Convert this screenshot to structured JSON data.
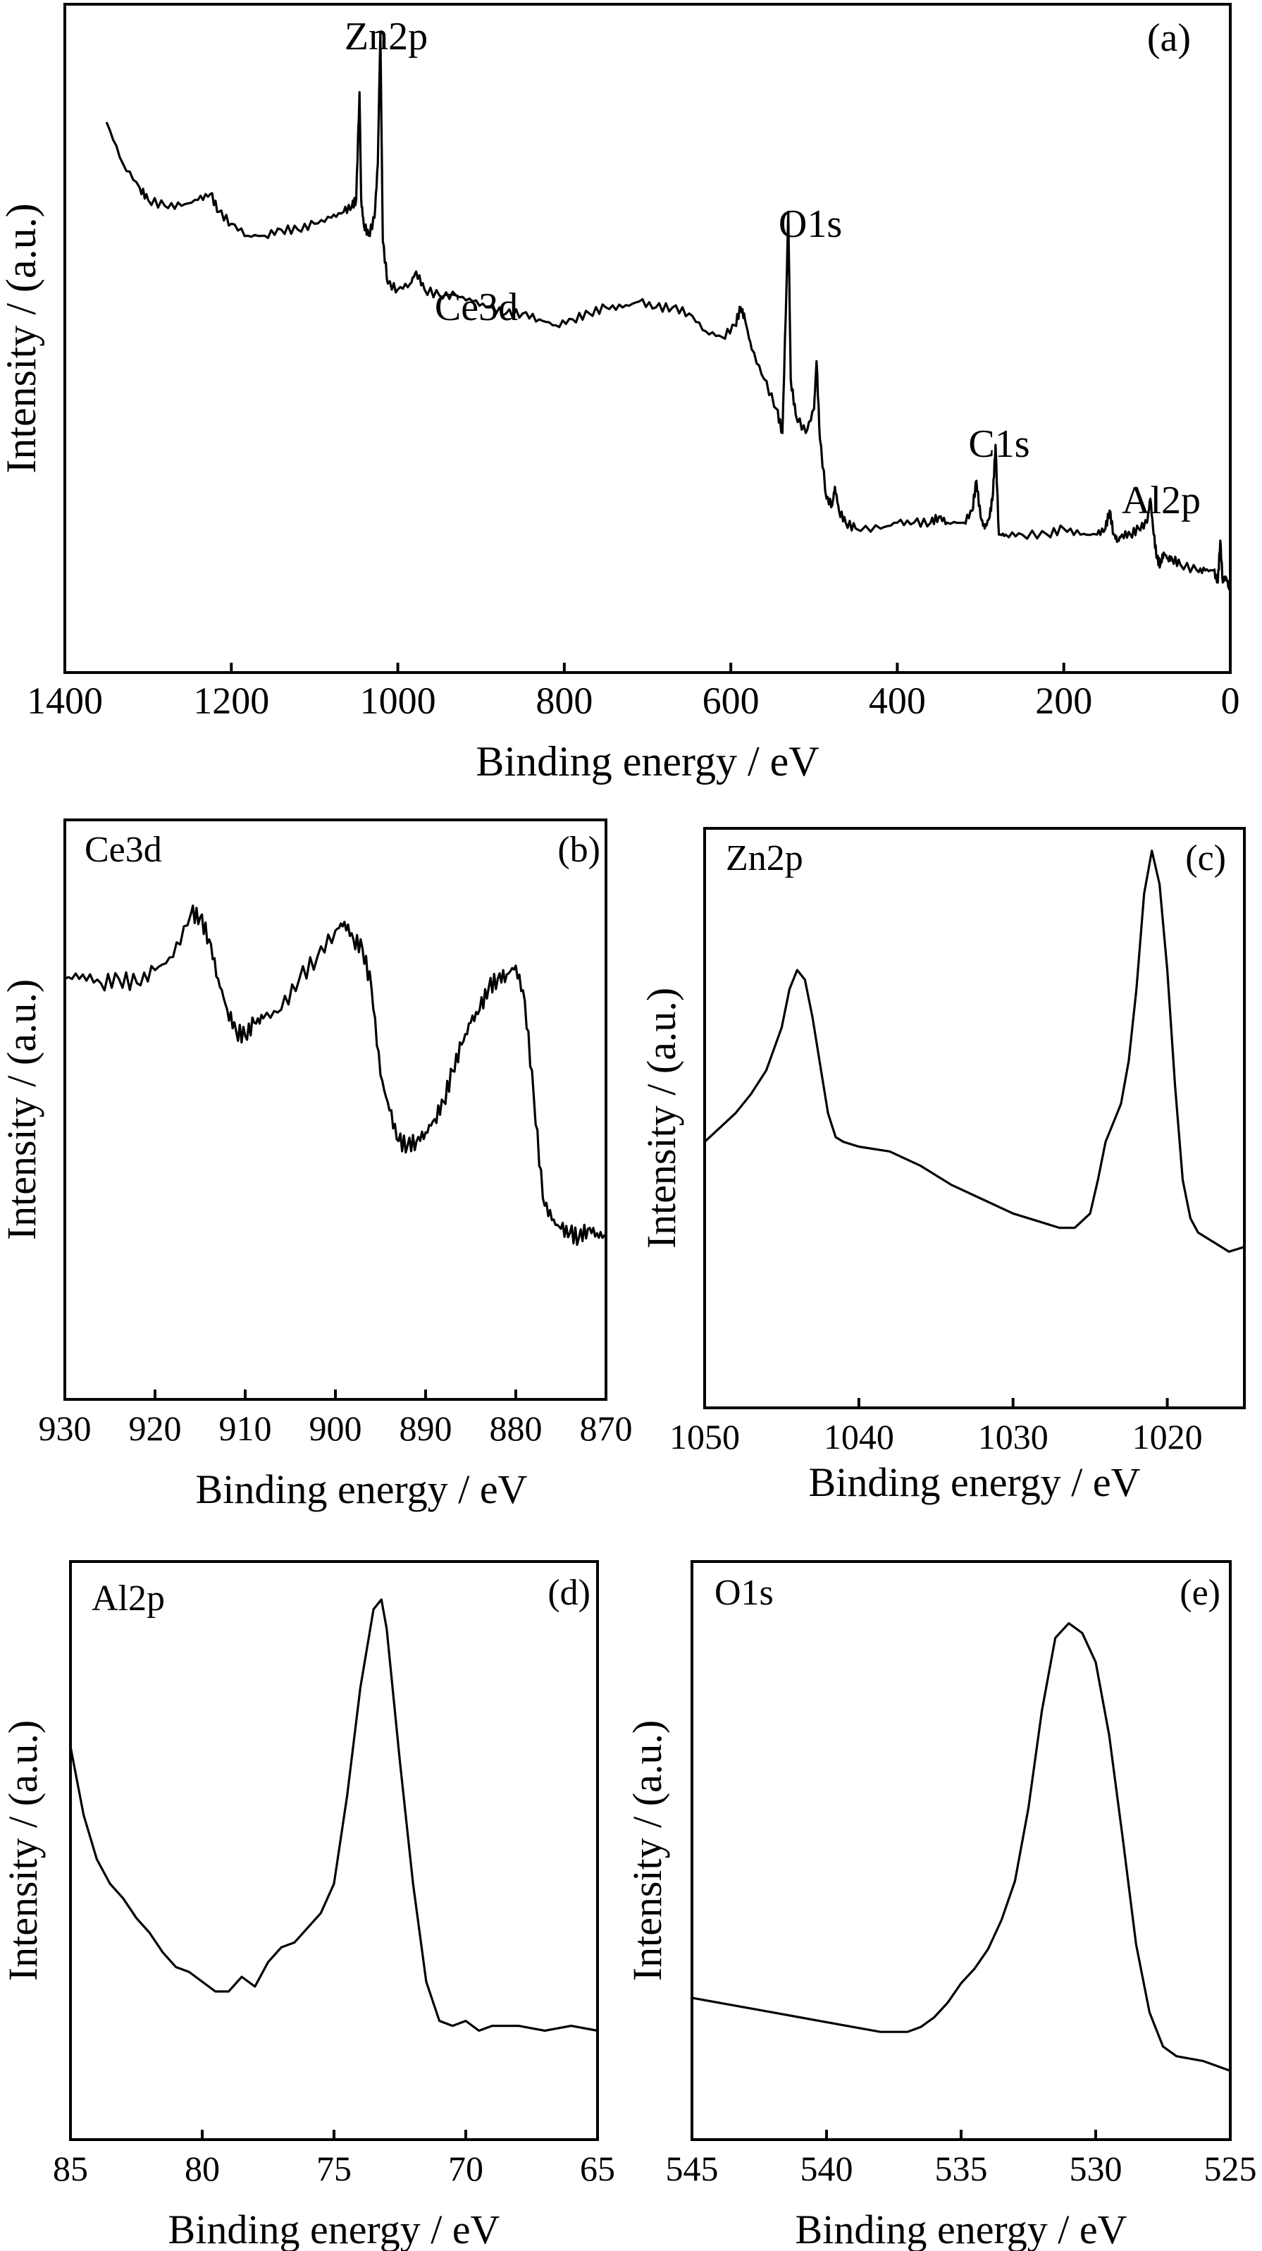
{
  "chart_data": [
    {
      "id": "a",
      "type": "line",
      "panel_label": "(a)",
      "title": "",
      "xlabel": "Binding energy / eV",
      "ylabel": "Intensity / (a.u.)",
      "xlim": [
        1400,
        0
      ],
      "ylim": [
        0,
        100
      ],
      "xticks": [
        1400,
        1200,
        1000,
        800,
        600,
        400,
        200,
        0
      ],
      "annotations": [
        {
          "text": "Zn2p",
          "x": 1045,
          "y": 98
        },
        {
          "text": "Ce3d",
          "x": 930,
          "y": 57
        },
        {
          "text": "O1s",
          "x": 530,
          "y": 68
        },
        {
          "text": "C1s",
          "x": 290,
          "y": 32
        },
        {
          "text": "Al2p",
          "x": 80,
          "y": 24
        }
      ],
      "x": [
        1350,
        1330,
        1310,
        1300,
        1280,
        1260,
        1240,
        1225,
        1215,
        1200,
        1180,
        1160,
        1140,
        1120,
        1100,
        1080,
        1065,
        1055,
        1050,
        1046,
        1044,
        1041,
        1035,
        1028,
        1024,
        1021,
        1018,
        1012,
        1000,
        985,
        978,
        968,
        950,
        930,
        910,
        890,
        870,
        850,
        830,
        810,
        790,
        770,
        750,
        730,
        710,
        690,
        670,
        650,
        630,
        610,
        595,
        588,
        583,
        575,
        560,
        545,
        538,
        533,
        531,
        528,
        522,
        510,
        500,
        497,
        493,
        485,
        478,
        475,
        470,
        462,
        450,
        420,
        400,
        380,
        360,
        350,
        340,
        320,
        310,
        305,
        300,
        295,
        289,
        285,
        282,
        278,
        270,
        250,
        220,
        200,
        180,
        160,
        150,
        145,
        140,
        135,
        130,
        120,
        110,
        100,
        96,
        92,
        88,
        84,
        80,
        75,
        70,
        60,
        40,
        30,
        20,
        15,
        12,
        9,
        6,
        3,
        0
      ],
      "values": [
        85,
        78,
        74,
        72,
        71,
        71,
        72,
        73,
        70,
        68,
        66,
        66,
        67,
        67,
        68,
        69,
        70,
        71,
        72,
        90,
        72,
        68,
        66,
        69,
        78,
        100,
        65,
        58,
        57,
        58,
        60,
        57,
        56,
        56,
        55,
        54,
        53,
        53,
        52,
        51,
        52,
        53,
        54,
        54,
        55,
        54,
        54,
        53,
        50,
        49,
        51,
        54,
        52,
        47,
        42,
        37,
        33,
        58,
        70,
        42,
        36,
        33,
        37,
        45,
        32,
        22,
        21,
        24,
        20,
        18,
        17,
        17,
        18,
        18,
        18,
        19,
        18,
        18,
        20,
        25,
        19,
        17,
        19,
        23,
        31,
        16,
        16,
        16,
        16,
        17,
        16,
        16,
        17,
        20,
        16,
        15,
        16,
        16,
        17,
        18,
        22,
        16,
        12,
        11,
        13,
        12,
        12,
        11,
        10,
        10,
        10,
        8,
        15,
        8,
        9,
        8,
        7
      ]
    },
    {
      "id": "b",
      "type": "line",
      "panel_label": "(b)",
      "title": "",
      "xlabel": "Binding energy / eV",
      "ylabel": "Intensity / (a.u.)",
      "inset_label": "Ce3d",
      "xlim": [
        930,
        870
      ],
      "ylim": [
        0,
        100
      ],
      "xticks": [
        930,
        920,
        910,
        900,
        890,
        880,
        870
      ],
      "x": [
        930,
        928,
        926,
        924,
        922,
        920,
        918,
        916,
        915,
        914,
        913,
        912,
        911,
        910,
        909,
        908,
        906,
        904,
        902,
        900,
        899,
        898,
        897,
        896,
        895,
        894,
        893,
        892,
        891,
        890,
        889,
        888,
        887,
        886,
        885,
        884,
        883,
        882,
        881,
        880,
        879,
        878,
        877,
        876,
        875,
        874,
        873,
        872,
        871,
        870
      ],
      "values": [
        75,
        76,
        74,
        75,
        74,
        77,
        80,
        90,
        89,
        84,
        75,
        68,
        63,
        62,
        65,
        66,
        68,
        75,
        80,
        86,
        88,
        84,
        82,
        73,
        53,
        45,
        38,
        37,
        38,
        40,
        43,
        47,
        54,
        60,
        65,
        68,
        73,
        75,
        76,
        78,
        70,
        48,
        25,
        20,
        18,
        17,
        16,
        18,
        17,
        16
      ]
    },
    {
      "id": "c",
      "type": "line",
      "panel_label": "(c)",
      "title": "",
      "xlabel": "Binding energy / eV",
      "ylabel": "Intensity / (a.u.)",
      "inset_label": "Zn2p",
      "xlim": [
        1050,
        1015
      ],
      "ylim": [
        0,
        100
      ],
      "xticks": [
        1050,
        1040,
        1030,
        1020
      ],
      "x": [
        1050,
        1049,
        1048,
        1047,
        1046,
        1045,
        1044.5,
        1044,
        1043.5,
        1043,
        1042.5,
        1042,
        1041.5,
        1041,
        1040,
        1038,
        1036,
        1034,
        1032,
        1030,
        1028,
        1027,
        1026,
        1025,
        1024.5,
        1024,
        1023.5,
        1023,
        1022.5,
        1022,
        1021.5,
        1021,
        1020.5,
        1020,
        1019.5,
        1019,
        1018.5,
        1018,
        1017,
        1016,
        1015
      ],
      "values": [
        38,
        41,
        44,
        48,
        53,
        62,
        70,
        74,
        72,
        64,
        54,
        44,
        39,
        38,
        37,
        36,
        33,
        29,
        26,
        23,
        21,
        20,
        20,
        23,
        30,
        38,
        42,
        46,
        55,
        70,
        90,
        99,
        92,
        74,
        50,
        30,
        22,
        19,
        17,
        15,
        16
      ]
    },
    {
      "id": "d",
      "type": "line",
      "panel_label": "(d)",
      "title": "",
      "xlabel": "Binding energy / eV",
      "ylabel": "Intensity / (a.u.)",
      "inset_label": "Al2p",
      "xlim": [
        85,
        65
      ],
      "ylim": [
        0,
        100
      ],
      "xticks": [
        85,
        80,
        75,
        70,
        65
      ],
      "x": [
        85,
        84.5,
        84,
        83.5,
        83,
        82.5,
        82,
        81.5,
        81,
        80.5,
        80,
        79.5,
        79,
        78.5,
        78,
        77.5,
        77,
        76.5,
        76,
        75.5,
        75,
        74.5,
        74,
        73.5,
        73.2,
        73,
        72.5,
        72,
        71.5,
        71,
        70.5,
        70,
        69.5,
        69,
        68,
        67,
        66,
        65
      ],
      "values": [
        68,
        54,
        45,
        40,
        37,
        33,
        30,
        26,
        23,
        22,
        20,
        18,
        18,
        21,
        19,
        24,
        27,
        28,
        31,
        34,
        40,
        58,
        80,
        96,
        98,
        92,
        65,
        40,
        20,
        12,
        11,
        12,
        10,
        11,
        11,
        10,
        11,
        10
      ]
    },
    {
      "id": "e",
      "type": "line",
      "panel_label": "(e)",
      "title": "",
      "xlabel": "Binding energy / eV",
      "ylabel": "Intensity / (a.u.)",
      "inset_label": "O1s",
      "xlim": [
        545,
        525
      ],
      "ylim": [
        0,
        100
      ],
      "xticks": [
        545,
        540,
        535,
        530,
        525
      ],
      "x": [
        545,
        544,
        543,
        542,
        541,
        540,
        539,
        538,
        537,
        536.5,
        536,
        535.5,
        535,
        534.5,
        534,
        533.5,
        533,
        532.5,
        532,
        531.5,
        531,
        530.5,
        530,
        529.5,
        529,
        528.5,
        528,
        527.5,
        527,
        526,
        525
      ],
      "values": [
        19,
        18,
        17,
        16,
        15,
        14,
        13,
        12,
        12,
        13,
        15,
        18,
        22,
        25,
        29,
        35,
        43,
        58,
        78,
        93,
        96,
        94,
        88,
        73,
        52,
        30,
        16,
        9,
        7,
        6,
        4
      ]
    }
  ]
}
